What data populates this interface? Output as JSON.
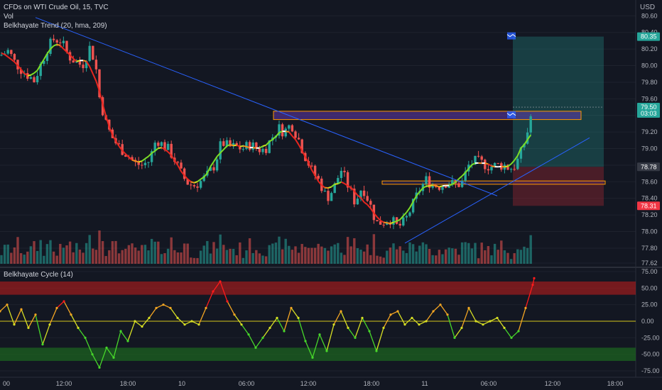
{
  "header": {
    "symbol_line": "CFDs on WTI Crude Oil, 15, TVC",
    "vol_label": "Vol",
    "trend_indicator": "Belkhayate Trend (20, hma, 209)",
    "cycle_indicator": "Belkhayate Cycle  (14)"
  },
  "currency": "USD",
  "colors": {
    "background": "#131722",
    "bull": "#26a69a",
    "bear": "#ef5350",
    "trendline": "#2962ff",
    "zone_purple": "#673ab7",
    "zone_orange": "#ff9800",
    "target_zone": "#26a69a",
    "stop_zone": "#b22833",
    "cycle_high_band": "#b71c1c",
    "cycle_low_band": "#1b5e20",
    "zero_line": "#d4c51c"
  },
  "chart_data": [
    {
      "type": "candlestick",
      "symbol": "CFDs on WTI Crude Oil, 15, TVC",
      "y_ticks": [
        "80.60",
        "80.40",
        "80.20",
        "80.00",
        "79.80",
        "79.60",
        "79.40",
        "79.20",
        "79.00",
        "78.80",
        "78.60",
        "78.40",
        "78.20",
        "78.00",
        "77.80",
        "77.62"
      ],
      "ylim": [
        77.62,
        80.62
      ],
      "x_ticks": [
        "00",
        "12:00",
        "18:00",
        "10",
        "06:00",
        "12:00",
        "18:00",
        "11",
        "06:00",
        "12:00",
        "18:00"
      ],
      "price_labels": [
        {
          "value": 80.35,
          "text": "80.35",
          "color": "#26a69a"
        },
        {
          "value": 79.5,
          "text": "79.50",
          "color": "#26a69a"
        },
        {
          "value": 79.5,
          "text": "03:03",
          "color": "#26a69a"
        },
        {
          "value": 78.78,
          "text": "78.78",
          "color": "#b2b5be"
        },
        {
          "value": 78.31,
          "text": "78.31",
          "color": "#f23645"
        }
      ],
      "zones": [
        {
          "name": "purple-zone",
          "y": [
            79.35,
            79.45
          ]
        },
        {
          "name": "orange-zone",
          "y": [
            78.57,
            78.61
          ]
        },
        {
          "name": "target-zone",
          "y": [
            78.78,
            80.35
          ]
        },
        {
          "name": "stop-zone",
          "y": [
            78.31,
            78.78
          ]
        }
      ],
      "trendlines": [
        {
          "name": "descending-trendline",
          "from": [
            50,
            80.58
          ],
          "to": [
            700,
            78.43
          ]
        },
        {
          "name": "ascending-trendline",
          "from": [
            570,
            77.86
          ],
          "to": [
            830,
            79.13
          ]
        }
      ],
      "series": [
        {
          "name": "price",
          "close_path": [
            [
              0,
              80.12
            ],
            [
              12,
              80.18
            ],
            [
              20,
              80.05
            ],
            [
              30,
              79.95
            ],
            [
              40,
              79.88
            ],
            [
              48,
              79.82
            ],
            [
              56,
              79.98
            ],
            [
              66,
              80.2
            ],
            [
              76,
              80.32
            ],
            [
              86,
              80.3
            ],
            [
              96,
              80.12
            ],
            [
              106,
              80.05
            ],
            [
              116,
              80.0
            ],
            [
              126,
              80.22
            ],
            [
              134,
              80.05
            ],
            [
              140,
              79.62
            ],
            [
              150,
              79.28
            ],
            [
              160,
              79.1
            ],
            [
              170,
              79.0
            ],
            [
              180,
              78.92
            ],
            [
              190,
              78.82
            ],
            [
              200,
              78.8
            ],
            [
              210,
              78.85
            ],
            [
              220,
              79.12
            ],
            [
              228,
              79.05
            ],
            [
              236,
              79.0
            ],
            [
              244,
              78.9
            ],
            [
              254,
              78.72
            ],
            [
              262,
              78.6
            ],
            [
              272,
              78.55
            ],
            [
              282,
              78.6
            ],
            [
              292,
              78.68
            ],
            [
              302,
              78.8
            ],
            [
              312,
              79.08
            ],
            [
              322,
              79.02
            ],
            [
              332,
              79.02
            ],
            [
              342,
              79.0
            ],
            [
              352,
              79.05
            ],
            [
              362,
              79.0
            ],
            [
              372,
              78.98
            ],
            [
              382,
              79.12
            ],
            [
              392,
              79.25
            ],
            [
              400,
              79.2
            ],
            [
              410,
              79.3
            ],
            [
              420,
              79.12
            ],
            [
              430,
              78.9
            ],
            [
              440,
              78.72
            ],
            [
              450,
              78.6
            ],
            [
              460,
              78.4
            ],
            [
              470,
              78.52
            ],
            [
              480,
              78.75
            ],
            [
              490,
              78.55
            ],
            [
              500,
              78.35
            ],
            [
              510,
              78.55
            ],
            [
              520,
              78.35
            ],
            [
              530,
              78.1
            ],
            [
              540,
              78.12
            ],
            [
              550,
              78.15
            ],
            [
              560,
              78.05
            ],
            [
              570,
              78.12
            ],
            [
              580,
              78.3
            ],
            [
              590,
              78.5
            ],
            [
              600,
              78.62
            ],
            [
              610,
              78.56
            ],
            [
              620,
              78.55
            ],
            [
              630,
              78.6
            ],
            [
              640,
              78.56
            ],
            [
              650,
              78.58
            ],
            [
              660,
              78.8
            ],
            [
              670,
              78.85
            ],
            [
              680,
              78.82
            ],
            [
              690,
              78.78
            ],
            [
              700,
              78.8
            ],
            [
              710,
              78.8
            ],
            [
              718,
              78.76
            ],
            [
              726,
              78.8
            ],
            [
              734,
              78.96
            ],
            [
              742,
              79.18
            ],
            [
              750,
              79.5
            ]
          ]
        },
        {
          "name": "volume",
          "scale": "relative"
        },
        {
          "name": "belkhayate-trend",
          "kind": "hma"
        }
      ]
    },
    {
      "type": "line",
      "title": "Belkhayate Cycle  (14)",
      "y_ticks": [
        "75.00",
        "50.00",
        "25.00",
        "0.00",
        "-25.00",
        "-50.00",
        "-75.00"
      ],
      "ylim": [
        -75,
        75
      ],
      "bands": [
        {
          "name": "overbought",
          "y": [
            40,
            75
          ]
        },
        {
          "name": "oversold",
          "y": [
            -75,
            -40
          ]
        }
      ],
      "zero_line": 0,
      "series": [
        {
          "name": "cycle",
          "points": [
            [
              0,
              15
            ],
            [
              10,
              25
            ],
            [
              20,
              -5
            ],
            [
              30,
              18
            ],
            [
              40,
              -10
            ],
            [
              50,
              10
            ],
            [
              60,
              -35
            ],
            [
              70,
              -5
            ],
            [
              80,
              20
            ],
            [
              90,
              30
            ],
            [
              100,
              10
            ],
            [
              110,
              -10
            ],
            [
              120,
              -25
            ],
            [
              130,
              -50
            ],
            [
              140,
              -70
            ],
            [
              150,
              -40
            ],
            [
              160,
              -55
            ],
            [
              170,
              -15
            ],
            [
              180,
              -30
            ],
            [
              190,
              0
            ],
            [
              200,
              -8
            ],
            [
              210,
              5
            ],
            [
              220,
              20
            ],
            [
              230,
              25
            ],
            [
              240,
              20
            ],
            [
              250,
              5
            ],
            [
              260,
              -5
            ],
            [
              270,
              0
            ],
            [
              280,
              -5
            ],
            [
              290,
              20
            ],
            [
              300,
              45
            ],
            [
              310,
              60
            ],
            [
              320,
              30
            ],
            [
              330,
              10
            ],
            [
              340,
              -5
            ],
            [
              350,
              -20
            ],
            [
              360,
              -40
            ],
            [
              370,
              -25
            ],
            [
              380,
              -10
            ],
            [
              390,
              5
            ],
            [
              400,
              -15
            ],
            [
              410,
              20
            ],
            [
              420,
              5
            ],
            [
              430,
              -30
            ],
            [
              440,
              -55
            ],
            [
              450,
              -20
            ],
            [
              460,
              -45
            ],
            [
              470,
              -5
            ],
            [
              480,
              15
            ],
            [
              490,
              -10
            ],
            [
              500,
              -25
            ],
            [
              510,
              5
            ],
            [
              520,
              -15
            ],
            [
              530,
              -45
            ],
            [
              540,
              -10
            ],
            [
              550,
              10
            ],
            [
              560,
              15
            ],
            [
              570,
              -5
            ],
            [
              580,
              5
            ],
            [
              590,
              -5
            ],
            [
              600,
              0
            ],
            [
              610,
              15
            ],
            [
              620,
              25
            ],
            [
              630,
              10
            ],
            [
              640,
              -25
            ],
            [
              650,
              -10
            ],
            [
              660,
              20
            ],
            [
              670,
              0
            ],
            [
              680,
              -5
            ],
            [
              690,
              0
            ],
            [
              700,
              5
            ],
            [
              710,
              -10
            ],
            [
              720,
              -25
            ],
            [
              730,
              -15
            ],
            [
              740,
              20
            ],
            [
              750,
              55
            ],
            [
              752,
              65
            ]
          ]
        }
      ]
    }
  ]
}
